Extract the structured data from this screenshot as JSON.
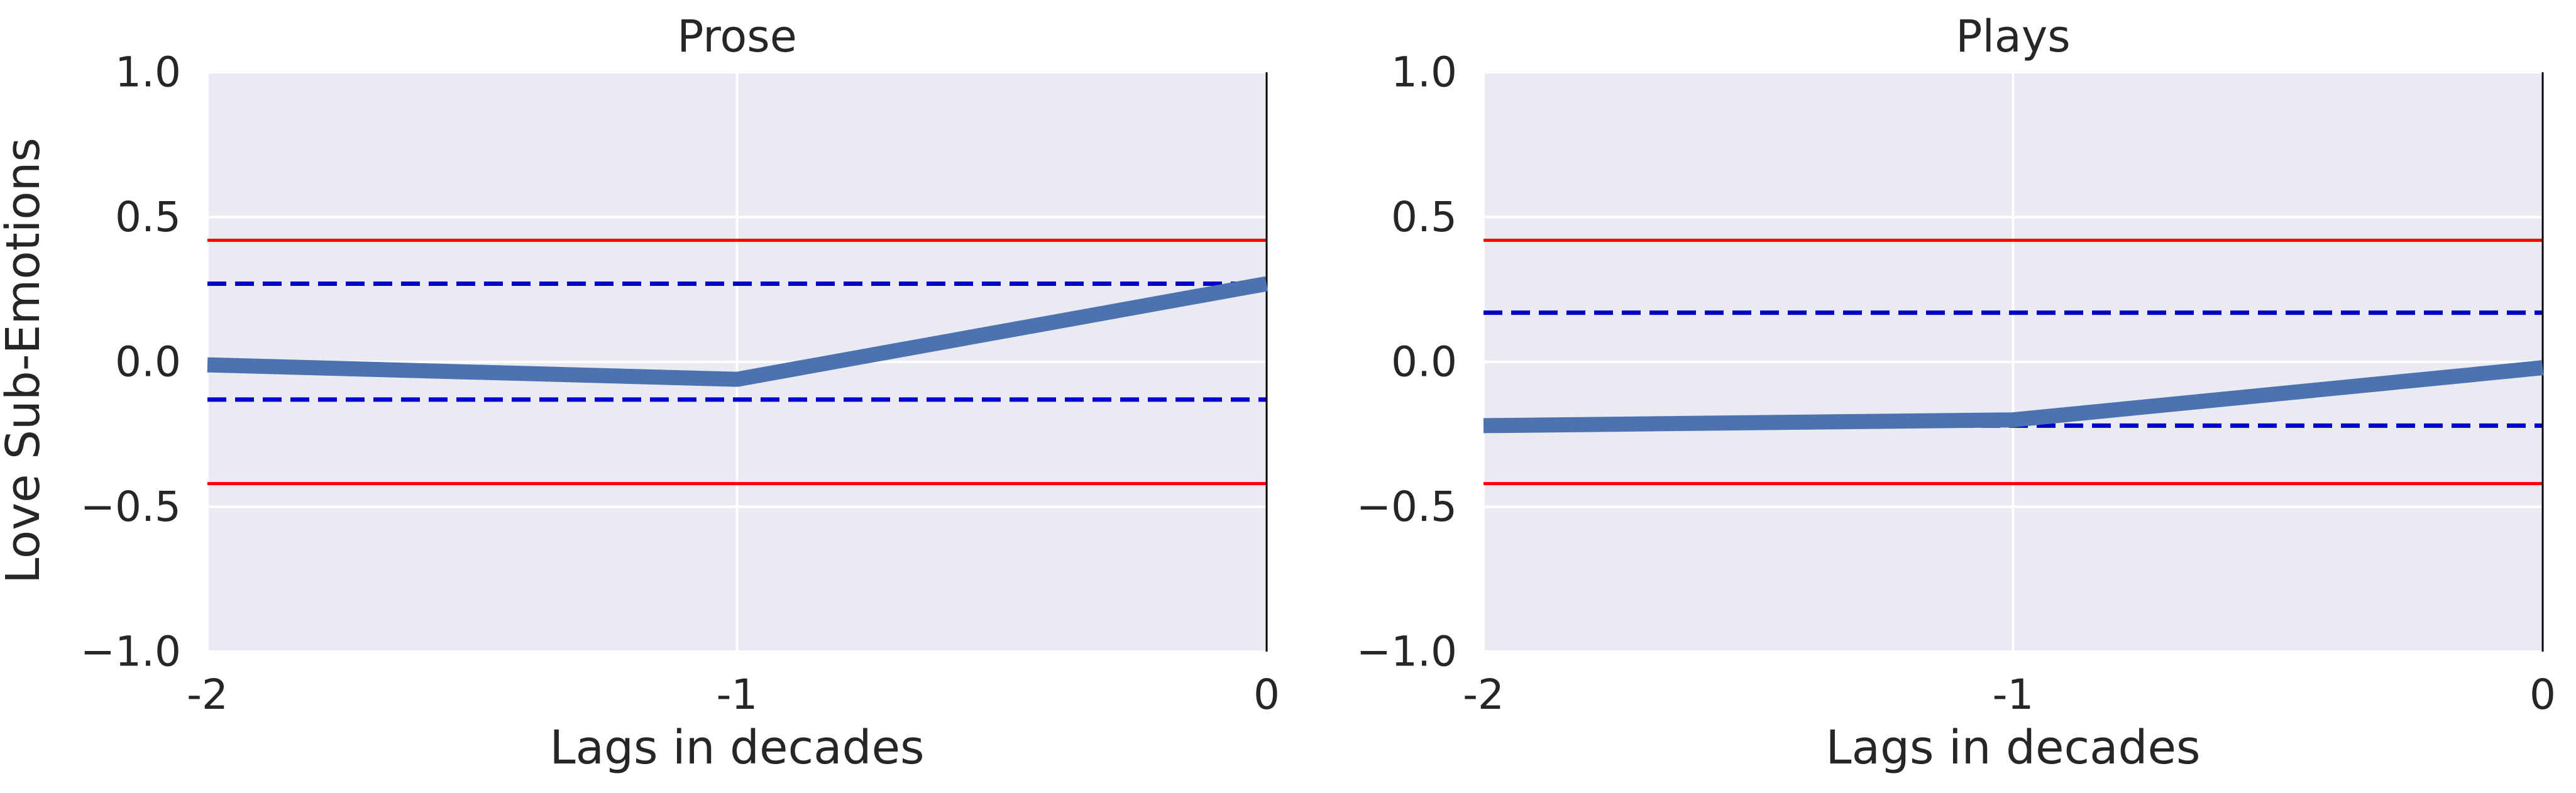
{
  "figure": {
    "ylabel": "Love Sub-Emotions",
    "xlabel": "Lags in decades"
  },
  "colors": {
    "panel_background": "#EAEAF2",
    "grid": "#FFFFFF",
    "series": "#4C72B0",
    "red_bound": "#FF0000",
    "blue_bound": "#0000CC",
    "zero_lag_line": "#000000"
  },
  "chart_data": [
    {
      "type": "line",
      "title": "Prose",
      "xlabel": "Lags in decades",
      "ylabel": "Love Sub-Emotions",
      "x": [
        -2,
        -1,
        0
      ],
      "x_tick_labels": [
        "-2",
        "-1",
        "0"
      ],
      "y_tick_values": [
        1.0,
        0.5,
        0.0,
        -0.5,
        -1.0
      ],
      "y_tick_labels": [
        "1.0",
        "0.5",
        "0.0",
        "−0.5",
        "−1.0"
      ],
      "xlim": [
        -2,
        0
      ],
      "ylim": [
        -1,
        1
      ],
      "grid": true,
      "series": [
        {
          "values": [
            -0.01,
            -0.06,
            0.27
          ]
        }
      ],
      "reference_lines": [
        {
          "y": 0.42,
          "style": "solid",
          "color": "red"
        },
        {
          "y": -0.42,
          "style": "solid",
          "color": "red"
        },
        {
          "y": 0.27,
          "style": "dashed",
          "color": "blue"
        },
        {
          "y": -0.13,
          "style": "dashed",
          "color": "blue"
        }
      ],
      "vertical_line_x": 0
    },
    {
      "type": "line",
      "title": "Plays",
      "xlabel": "Lags in decades",
      "ylabel": "",
      "x": [
        -2,
        -1,
        0
      ],
      "x_tick_labels": [
        "-2",
        "-1",
        "0"
      ],
      "y_tick_values": [
        1.0,
        0.5,
        0.0,
        -0.5,
        -1.0
      ],
      "y_tick_labels": [
        "1.0",
        "0.5",
        "0.0",
        "−0.5",
        "−1.0"
      ],
      "xlim": [
        -2,
        0
      ],
      "ylim": [
        -1,
        1
      ],
      "grid": true,
      "series": [
        {
          "values": [
            -0.22,
            -0.2,
            -0.02
          ]
        }
      ],
      "reference_lines": [
        {
          "y": 0.42,
          "style": "solid",
          "color": "red"
        },
        {
          "y": -0.42,
          "style": "solid",
          "color": "red"
        },
        {
          "y": 0.17,
          "style": "dashed",
          "color": "blue"
        },
        {
          "y": -0.22,
          "style": "dashed",
          "color": "blue"
        }
      ],
      "vertical_line_x": 0
    }
  ]
}
